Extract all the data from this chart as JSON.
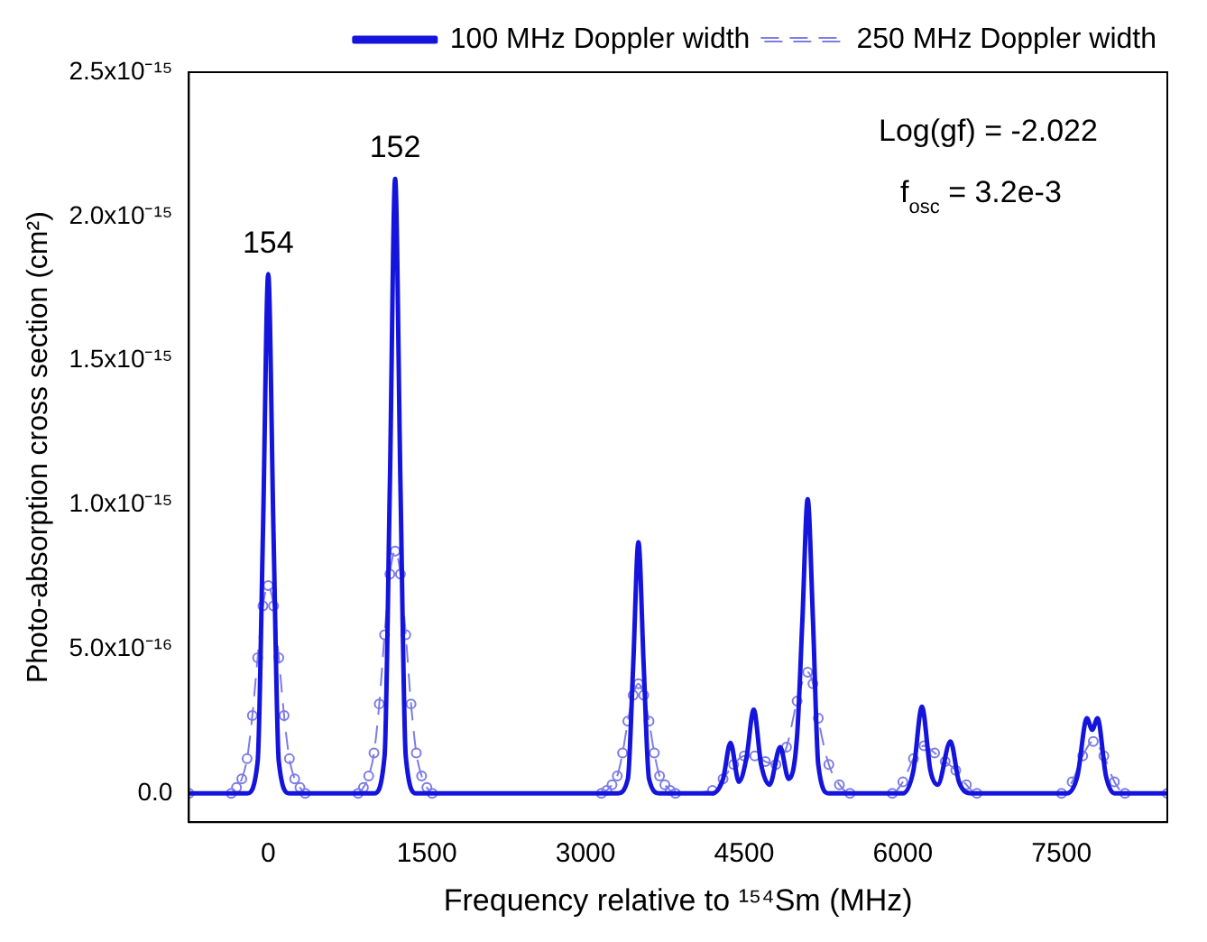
{
  "chart_data": {
    "type": "line",
    "xlabel": "Frequency relative to ¹⁵⁴Sm (MHz)",
    "ylabel": "Photo-absorption cross section (cm²)",
    "xlim": [
      -750,
      8500
    ],
    "xticks": [
      0,
      1500,
      3000,
      4500,
      6000,
      7500
    ],
    "ylim": [
      -1e-16,
      2.5e-15
    ],
    "yticks": [
      {
        "value": 0,
        "label": "0.0"
      },
      {
        "value": 5e-16,
        "label": "5.0x10⁻¹⁶"
      },
      {
        "value": 1e-15,
        "label": "1.0x10⁻¹⁵"
      },
      {
        "value": 1.5e-15,
        "label": "1.5x10⁻¹⁵"
      },
      {
        "value": 2e-15,
        "label": "2.0x10⁻¹⁵"
      },
      {
        "value": 2.5e-15,
        "label": "2.5x10⁻¹⁵"
      }
    ],
    "grid": false,
    "legend": "top right",
    "annotations": [
      {
        "text": "154",
        "x": 0,
        "y": 1.8e-15
      },
      {
        "text": "152",
        "x": 1200,
        "y": 2.13e-15
      },
      "Log(gf) = -2.022",
      "f$_{osc}$ = 3.2e-3"
    ],
    "series": [
      {
        "name": "100 MHz Doppler width",
        "color": "#1414dc",
        "line_style": "solid",
        "x": [
          -750,
          -200,
          -100,
          -50,
          0,
          50,
          100,
          200,
          1000,
          1100,
          1150,
          1200,
          1250,
          1300,
          1400,
          3300,
          3400,
          3450,
          3500,
          3550,
          3600,
          3700,
          4200,
          4300,
          4370,
          4450,
          4520,
          4590,
          4660,
          4740,
          4840,
          4920,
          5000,
          5050,
          5100,
          5150,
          5200,
          5300,
          6000,
          6100,
          6180,
          6260,
          6330,
          6450,
          6530,
          6650,
          7550,
          7650,
          7740,
          7790,
          7840,
          7920,
          8000,
          8500
        ],
        "values": [
          0,
          0,
          1.1e-16,
          9e-16,
          1.8e-15,
          9e-16,
          1.1e-16,
          0,
          0,
          1.3e-16,
          1.07e-15,
          2.13e-15,
          1.07e-15,
          1.3e-16,
          0,
          0,
          5e-17,
          4.4e-16,
          8.7e-16,
          4.4e-16,
          5e-17,
          0,
          0,
          5e-17,
          1.75e-16,
          4e-17,
          1.2e-16,
          2.9e-16,
          1e-16,
          3e-17,
          1.6e-16,
          5e-17,
          2e-16,
          6e-16,
          1.02e-15,
          6e-16,
          1e-16,
          0,
          0,
          8e-17,
          3e-16,
          8e-17,
          3e-17,
          1.8e-16,
          4e-17,
          0,
          0,
          6e-17,
          2.6e-16,
          2.2e-16,
          2.6e-16,
          6e-17,
          0,
          0
        ]
      },
      {
        "name": "250 MHz Doppler width",
        "color": "#7c7ce6",
        "line_style": "dashed",
        "marker": "circle",
        "x": [
          -750,
          -350,
          -300,
          -250,
          -200,
          -150,
          -100,
          -50,
          0,
          50,
          100,
          150,
          200,
          250,
          300,
          350,
          850,
          900,
          950,
          1000,
          1050,
          1100,
          1150,
          1200,
          1250,
          1300,
          1350,
          1400,
          1450,
          1500,
          1550,
          3150,
          3200,
          3250,
          3300,
          3350,
          3400,
          3450,
          3500,
          3550,
          3600,
          3650,
          3700,
          3750,
          3800,
          3850,
          4200,
          4300,
          4400,
          4500,
          4600,
          4700,
          4800,
          4900,
          5000,
          5100,
          5150,
          5200,
          5300,
          5400,
          5500,
          5900,
          6000,
          6100,
          6200,
          6300,
          6400,
          6500,
          6600,
          6700,
          7500,
          7600,
          7700,
          7800,
          7900,
          8000,
          8100,
          8500
        ],
        "values": [
          0,
          0,
          2e-17,
          5e-17,
          1.2e-16,
          2.7e-16,
          4.7e-16,
          6.5e-16,
          7.2e-16,
          6.5e-16,
          4.7e-16,
          2.7e-16,
          1.2e-16,
          5e-17,
          2e-17,
          0,
          0,
          2e-17,
          6e-17,
          1.4e-16,
          3.1e-16,
          5.5e-16,
          7.6e-16,
          8.4e-16,
          7.6e-16,
          5.5e-16,
          3.1e-16,
          1.4e-16,
          6e-17,
          2e-17,
          0,
          0,
          1e-17,
          3e-17,
          6e-17,
          1.4e-16,
          2.5e-16,
          3.4e-16,
          3.8e-16,
          3.4e-16,
          2.5e-16,
          1.4e-16,
          6e-17,
          3e-17,
          1e-17,
          0,
          1e-17,
          5e-17,
          1e-16,
          1.3e-16,
          1.3e-16,
          1.1e-16,
          1e-16,
          1.6e-16,
          3.2e-16,
          4.2e-16,
          3.8e-16,
          2.6e-16,
          1e-16,
          3e-17,
          0,
          0,
          4e-17,
          1.2e-16,
          1.65e-16,
          1.4e-16,
          1.1e-16,
          8e-17,
          3e-17,
          0,
          0,
          4e-17,
          1.3e-16,
          1.8e-16,
          1.3e-16,
          4e-17,
          0,
          0
        ]
      }
    ]
  }
}
